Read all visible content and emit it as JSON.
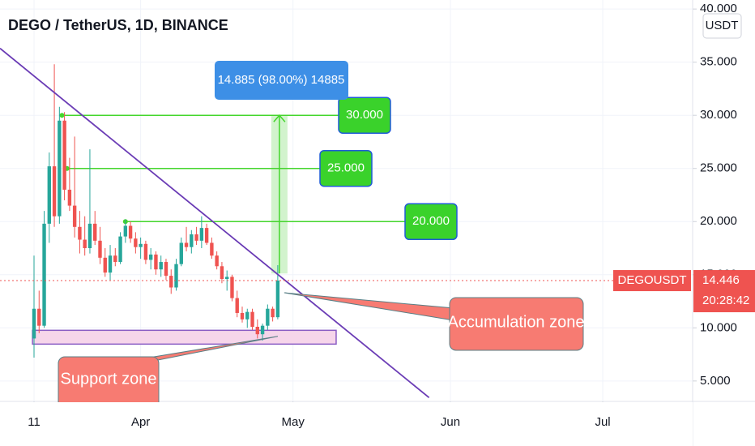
{
  "chart_data": {
    "type": "candlestick",
    "title": "DEGO / TetherUS, 1D, BINANCE",
    "currency_button": "USDT",
    "symbol_label": "DEGOUSDT",
    "countdown": "20:28:42",
    "up_color": "#26a69a",
    "down_color": "#ef5350",
    "series": {
      "open": [
        9,
        11.8,
        10.2,
        19.8,
        25.2,
        20.5,
        29.5,
        23,
        21.5,
        19.5,
        18.3,
        17.5,
        19.8,
        18.2,
        16.6,
        15.2,
        16.8,
        16.2,
        18.6,
        19.6,
        18.4,
        17.6,
        17.9,
        16.4,
        16.9,
        15.5,
        16.2,
        14.9,
        13.8,
        16,
        18,
        17.6,
        18.8,
        18.2,
        19.4,
        18,
        16.8,
        15.8,
        14.6,
        14.8,
        12.8,
        11.4,
        10.8,
        11.5,
        10.1,
        9.4,
        10.2,
        11.8,
        11
      ],
      "high": [
        16.8,
        13.5,
        21,
        26.5,
        34.8,
        30.8,
        30.3,
        26,
        28,
        21,
        20.5,
        26.8,
        21,
        19.5,
        17.5,
        17.8,
        17.5,
        19,
        20.2,
        20,
        19,
        18.5,
        18.2,
        17.5,
        17.2,
        16.8,
        16.5,
        15.5,
        16.5,
        18.5,
        19.5,
        19.2,
        19.5,
        20.5,
        19.8,
        18.5,
        17.2,
        16.2,
        15.4,
        15,
        13.5,
        12,
        11.8,
        11.8,
        10.8,
        10.4,
        12.2,
        12,
        15.9
      ],
      "low": [
        7.2,
        9.5,
        10,
        18,
        19.5,
        19.8,
        22,
        21,
        18.5,
        17,
        16.8,
        17,
        17.8,
        16,
        14.8,
        14.5,
        15.8,
        16,
        18,
        18,
        17,
        16.5,
        16,
        15.5,
        15,
        14.8,
        14.5,
        13.2,
        13.5,
        15.8,
        17.2,
        17,
        17.8,
        17.5,
        17.8,
        16.5,
        15.5,
        14.2,
        13.5,
        12.5,
        11,
        10.5,
        10,
        9.8,
        9,
        8.8,
        9.8,
        10.6,
        10.8
      ],
      "close": [
        11.8,
        10.2,
        19.8,
        25.2,
        20.5,
        29.5,
        23,
        21.5,
        19.5,
        18.3,
        17.5,
        19.8,
        18.2,
        16.6,
        15.2,
        16.8,
        16.2,
        18.6,
        19.6,
        18.4,
        17.6,
        17.9,
        16.4,
        16.9,
        15.5,
        16.2,
        14.9,
        13.8,
        16,
        18,
        17.6,
        18.8,
        18.2,
        19.4,
        18,
        16.8,
        15.8,
        14.6,
        14.8,
        12.8,
        11.4,
        10.8,
        11.5,
        10.1,
        9.4,
        10.2,
        11.8,
        11,
        14.446
      ]
    },
    "xlim": [
      -6.7,
      129.7
    ],
    "xticks": [
      {
        "value": 0,
        "label": "11"
      },
      {
        "value": 21,
        "label": "Apr"
      },
      {
        "value": 51,
        "label": "May"
      },
      {
        "value": 82,
        "label": "Jun"
      },
      {
        "value": 112,
        "label": "Jul"
      }
    ],
    "ylim": [
      3.08,
      40.85
    ],
    "yticks": [
      {
        "value": 5,
        "label": "5.000"
      },
      {
        "value": 10,
        "label": "10.000"
      },
      {
        "value": 15,
        "label": "15.000"
      },
      {
        "value": 20,
        "label": "20.000"
      },
      {
        "value": 25,
        "label": "25.000"
      },
      {
        "value": 30,
        "label": "30.000"
      },
      {
        "value": 35,
        "label": "35.000"
      },
      {
        "value": 40,
        "label": "40.000"
      }
    ],
    "levels": [
      {
        "value": 30,
        "label": "30.000",
        "start": 5.5
      },
      {
        "value": 25,
        "label": "25.000",
        "start": 6.5
      },
      {
        "value": 20,
        "label": "20.000",
        "start": 18
      }
    ],
    "measure": {
      "label": "14.885 (98.00%) 14885",
      "from": 15.115,
      "to": 30,
      "at": 48
    },
    "trendline": {
      "x": [
        -6.7,
        77.8
      ],
      "y": [
        36.3,
        3.44
      ]
    },
    "zone": {
      "x": [
        -0.3,
        59.5
      ],
      "y": [
        8.47,
        9.77
      ]
    },
    "annotations": [
      "Accumulation zone",
      "Support zone"
    ]
  }
}
